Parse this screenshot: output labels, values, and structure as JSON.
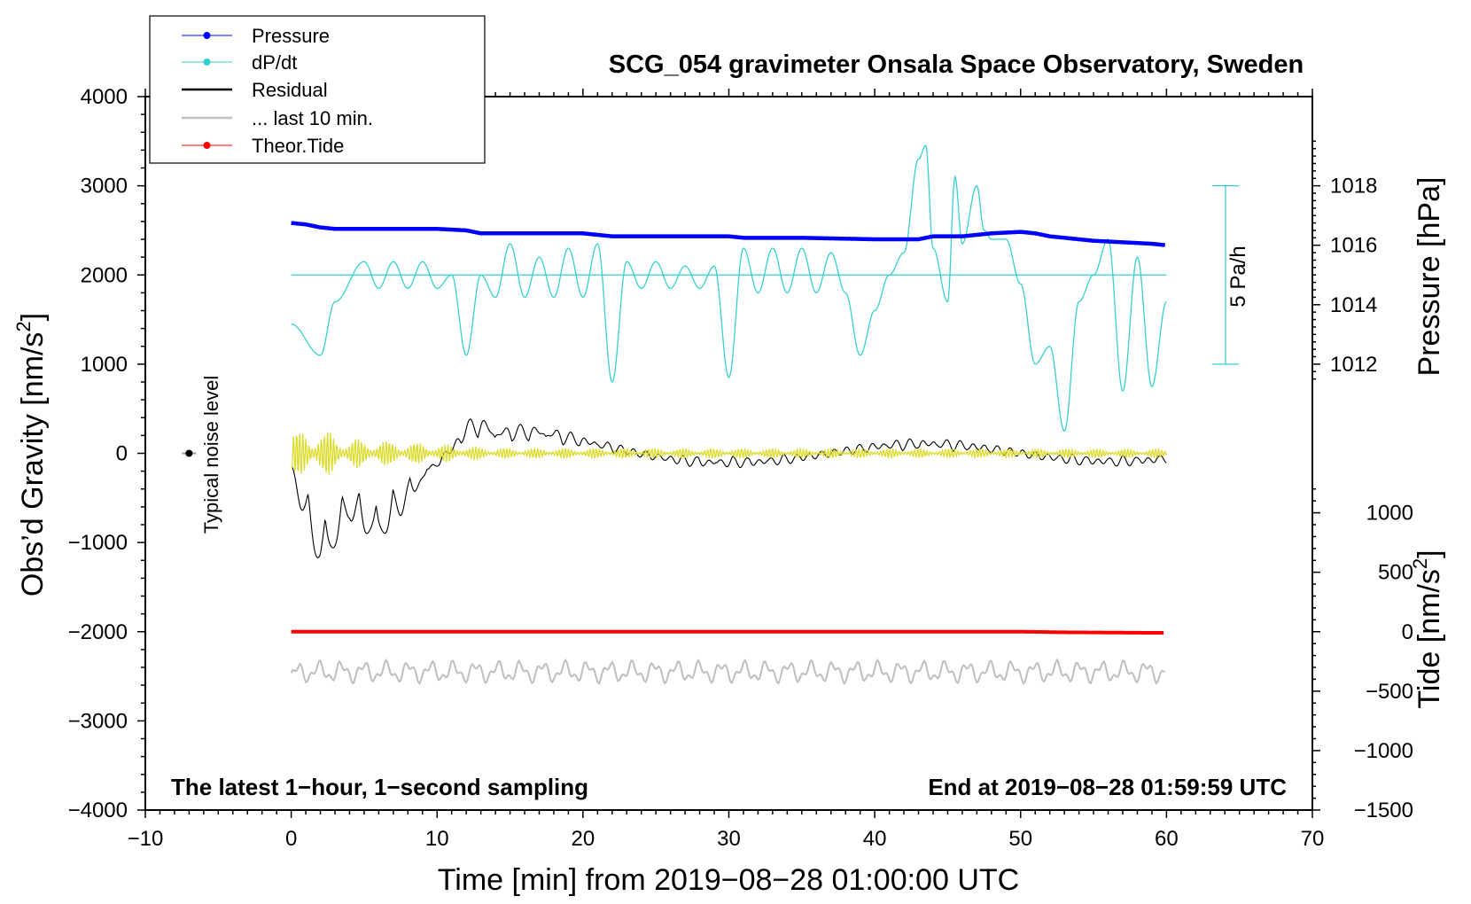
{
  "chart_data": {
    "type": "line",
    "title": "SCG_054 gravimeter Onsala Space Observatory, Sweden",
    "xlabel": "Time [min] from 2019−08−28 01:00:00 UTC",
    "ylabel_left": "Obs’d Gravity [nm/s²]",
    "ylabel_left_base": "Obs’d Gravity [nm/s",
    "ylabel_left_sup": "2",
    "ylabel_left_end": "]",
    "ylabel_pressure": "Pressure [hPa]",
    "ylabel_tide": "Tide [nm/s²]",
    "ylabel_tide_base": "Tide [nm/s",
    "ylabel_tide_sup": "2",
    "ylabel_tide_end": "]",
    "xlim": [
      -10,
      70
    ],
    "ylim_left": [
      -4000,
      4000
    ],
    "ylim_pressure_ticks": [
      1012,
      1014,
      1016,
      1018
    ],
    "pressure_mapping": {
      "hPa_a": 1012,
      "nm_a": 1000,
      "hPa_b": 1018,
      "nm_b": 3000
    },
    "tide_mapping": {
      "tide_a": 0,
      "nm_a": -2000,
      "tide_b": -1500,
      "nm_b": -4000
    },
    "x_ticks": [
      -10,
      0,
      10,
      20,
      30,
      40,
      50,
      60,
      70
    ],
    "x_tick_labels": [
      "−10",
      "0",
      "10",
      "20",
      "30",
      "40",
      "50",
      "60",
      "70"
    ],
    "y_ticks": [
      4000,
      3000,
      2000,
      1000,
      0,
      -1000,
      -2000,
      -3000,
      -4000
    ],
    "y_tick_labels": [
      "4000",
      "3000",
      "2000",
      "1000",
      "0",
      "−1000",
      "−2000",
      "−3000",
      "−4000"
    ],
    "pressure_ticks": [
      1012,
      1014,
      1016,
      1018
    ],
    "pressure_tick_labels": [
      "1012",
      "1014",
      "1016",
      "1018"
    ],
    "tide_ticks": [
      1000,
      500,
      0,
      -500,
      -1000,
      -1500
    ],
    "tide_tick_labels": [
      "1000",
      "500",
      "0",
      "−500",
      "−1000",
      "−1500"
    ],
    "legend_position": "top-left",
    "annotations": {
      "left_bottom": "The latest 1−hour, 1−second sampling",
      "right_bottom": "End at 2019−08−28 01:59:59 UTC",
      "noise": "Typical noise level",
      "scale_bar": "5 Pa/h"
    },
    "noise_point": {
      "x": -7,
      "y": 0
    },
    "scale_bar_range": [
      1000,
      3000
    ],
    "dpdt_zero_line": 2000,
    "series": [
      {
        "name": "Pressure",
        "color": "#0000ff",
        "unit": "hPa",
        "x": [
          0,
          1,
          2,
          3,
          5,
          10,
          12,
          13,
          15,
          20,
          22,
          30,
          31,
          35,
          40,
          43,
          44,
          46,
          48,
          50,
          51,
          52,
          55,
          57,
          59,
          60
        ],
        "y": [
          1016.75,
          1016.7,
          1016.6,
          1016.55,
          1016.55,
          1016.55,
          1016.5,
          1016.4,
          1016.4,
          1016.4,
          1016.3,
          1016.3,
          1016.25,
          1016.25,
          1016.2,
          1016.2,
          1016.3,
          1016.3,
          1016.4,
          1016.45,
          1016.4,
          1016.3,
          1016.15,
          1016.1,
          1016.05,
          1016.0
        ]
      },
      {
        "name": "dP/dt",
        "color": "#36d0d0",
        "x": [
          0,
          2,
          3,
          5,
          6,
          7,
          8,
          9,
          10,
          11,
          12,
          13,
          14,
          15,
          16,
          17,
          18,
          19,
          20,
          21,
          22,
          23,
          24,
          25,
          26,
          27,
          28,
          29,
          30,
          31,
          32,
          33,
          34,
          35,
          36,
          37,
          38,
          39,
          40,
          41,
          42,
          43,
          43.5,
          44,
          45,
          45.5,
          46,
          47,
          47.5,
          48,
          49,
          50,
          51,
          52,
          53,
          54,
          55,
          56,
          57,
          58,
          59,
          60
        ],
        "y": [
          1450,
          1100,
          1700,
          2150,
          1850,
          2150,
          1850,
          2150,
          1850,
          2000,
          1100,
          2000,
          1750,
          2350,
          1750,
          2200,
          1750,
          2300,
          1750,
          2350,
          800,
          2150,
          1850,
          2150,
          1850,
          2100,
          1850,
          2100,
          850,
          2300,
          1800,
          2300,
          1800,
          2300,
          1800,
          2250,
          1800,
          1100,
          1600,
          2000,
          2250,
          3300,
          3450,
          2300,
          1700,
          3100,
          2350,
          3000,
          2500,
          2400,
          2400,
          1900,
          1000,
          1200,
          250,
          1700,
          2000,
          2400,
          700,
          2200,
          750,
          1700
        ]
      },
      {
        "name": "Residual",
        "color": "#000000",
        "envelope": {
          "x": [
            0,
            1,
            2,
            4,
            6,
            10,
            12,
            14,
            20,
            30,
            40,
            50,
            60
          ],
          "amp": [
            450,
            1100,
            1500,
            700,
            1100,
            700,
            1050,
            350,
            200,
            120,
            130,
            120,
            100
          ]
        }
      },
      {
        "name": "... last 10 min.",
        "color": "#bfbfbf",
        "baseline": -2450,
        "amplitude": 120
      },
      {
        "name": "Theor.Tide",
        "color": "#ff0000",
        "unit": "nm/s²",
        "x": [
          0,
          50,
          53,
          60
        ],
        "y": [
          0,
          0,
          -5,
          -10
        ]
      }
    ],
    "yellow_trace": {
      "color": "#dcdc30",
      "envelope": {
        "x": [
          0,
          2,
          4,
          10,
          14,
          60
        ],
        "amp": [
          250,
          280,
          170,
          110,
          60,
          50
        ]
      }
    },
    "legend": [
      {
        "label": "Pressure",
        "color": "#0000ff",
        "style": "line-dot"
      },
      {
        "label": "dP/dt",
        "color": "#36d0d0",
        "style": "line-dot"
      },
      {
        "label": "Residual",
        "color": "#000000",
        "style": "line"
      },
      {
        "label": "... last 10 min.",
        "color": "#bfbfbf",
        "style": "line"
      },
      {
        "label": "Theor.Tide",
        "color": "#ff0000",
        "style": "line-dot"
      }
    ]
  }
}
